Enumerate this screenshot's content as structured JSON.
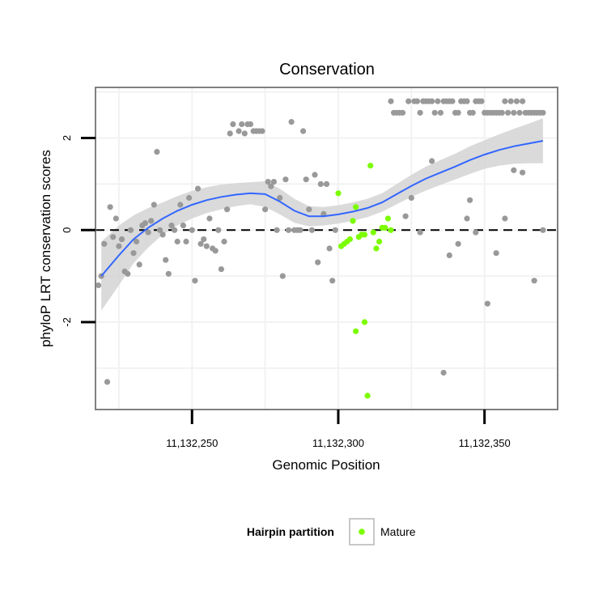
{
  "chart_data": {
    "type": "scatter",
    "title": "Conservation",
    "xlabel": "Genomic Position",
    "ylabel": "phyloP LRT conservation scores",
    "xlim": [
      11132217,
      11132375
    ],
    "ylim": [
      -3.9,
      3.1
    ],
    "x_ticks": [
      {
        "value": 11132250,
        "label": "11,132,250"
      },
      {
        "value": 11132300,
        "label": "11,132,300"
      },
      {
        "value": 11132350,
        "label": "11,132,350"
      }
    ],
    "y_ticks": [
      {
        "value": 2,
        "label": "2"
      },
      {
        "value": 0,
        "label": "0"
      },
      {
        "value": -2,
        "label": "-2"
      }
    ],
    "grid": true,
    "reference_line": {
      "y": 0,
      "style": "dashed"
    },
    "legend": {
      "title": "Hairpin partition",
      "position": "bottom",
      "entries": [
        {
          "label": "Mature",
          "color": "#7cfc00"
        }
      ]
    },
    "colors": {
      "other_points": "#999999",
      "mature_points": "#7cfc00",
      "smooth_line": "#3366ff",
      "confidence_band": "#d3d3d3"
    },
    "series": [
      {
        "legend": "",
        "color": "#999999",
        "points": [
          [
            11132218,
            -1.2
          ],
          [
            11132219,
            -1.0
          ],
          [
            11132220,
            -0.3
          ],
          [
            11132221,
            -3.3
          ],
          [
            11132222,
            0.5
          ],
          [
            11132223,
            -0.15
          ],
          [
            11132224,
            0.25
          ],
          [
            11132225,
            -0.35
          ],
          [
            11132226,
            -0.2
          ],
          [
            11132227,
            -0.9
          ],
          [
            11132228,
            -0.95
          ],
          [
            11132229,
            0.0
          ],
          [
            11132230,
            -0.5
          ],
          [
            11132231,
            -0.25
          ],
          [
            11132232,
            -0.75
          ],
          [
            11132233,
            0.1
          ],
          [
            11132234,
            0.15
          ],
          [
            11132235,
            -0.05
          ],
          [
            11132236,
            0.2
          ],
          [
            11132237,
            0.55
          ],
          [
            11132238,
            1.7
          ],
          [
            11132239,
            0.0
          ],
          [
            11132240,
            -0.1
          ],
          [
            11132241,
            -0.65
          ],
          [
            11132242,
            -0.95
          ],
          [
            11132243,
            0.1
          ],
          [
            11132244,
            0.0
          ],
          [
            11132245,
            -0.25
          ],
          [
            11132246,
            0.55
          ],
          [
            11132247,
            0.1
          ],
          [
            11132248,
            -0.25
          ],
          [
            11132249,
            0.7
          ],
          [
            11132250,
            0.0
          ],
          [
            11132251,
            -1.1
          ],
          [
            11132252,
            0.9
          ],
          [
            11132253,
            -0.3
          ],
          [
            11132254,
            -0.2
          ],
          [
            11132255,
            -0.35
          ],
          [
            11132256,
            0.25
          ],
          [
            11132257,
            -0.4
          ],
          [
            11132258,
            -0.45
          ],
          [
            11132259,
            0.0
          ],
          [
            11132260,
            -0.85
          ],
          [
            11132261,
            -0.25
          ],
          [
            11132262,
            0.45
          ],
          [
            11132263,
            2.1
          ],
          [
            11132264,
            2.3
          ],
          [
            11132266,
            2.15
          ],
          [
            11132267,
            2.3
          ],
          [
            11132268,
            2.1
          ],
          [
            11132269,
            2.3
          ],
          [
            11132270,
            2.3
          ],
          [
            11132271,
            2.15
          ],
          [
            11132272,
            2.15
          ],
          [
            11132273,
            2.15
          ],
          [
            11132274,
            2.15
          ],
          [
            11132275,
            0.45
          ],
          [
            11132276,
            1.05
          ],
          [
            11132277,
            0.95
          ],
          [
            11132278,
            1.05
          ],
          [
            11132279,
            0.0
          ],
          [
            11132280,
            0.7
          ],
          [
            11132281,
            -1.0
          ],
          [
            11132282,
            1.1
          ],
          [
            11132283,
            0.0
          ],
          [
            11132284,
            2.35
          ],
          [
            11132285,
            0.0
          ],
          [
            11132286,
            0.0
          ],
          [
            11132287,
            0.0
          ],
          [
            11132288,
            2.15
          ],
          [
            11132289,
            1.1
          ],
          [
            11132290,
            0.45
          ],
          [
            11132291,
            0.0
          ],
          [
            11132292,
            1.2
          ],
          [
            11132293,
            -0.7
          ],
          [
            11132294,
            1.0
          ],
          [
            11132295,
            0.35
          ],
          [
            11132296,
            1.0
          ],
          [
            11132297,
            -0.4
          ],
          [
            11132298,
            -1.1
          ],
          [
            11132299,
            0.0
          ],
          [
            11132323,
            0.3
          ],
          [
            11132325,
            0.7
          ],
          [
            11132328,
            -0.05
          ],
          [
            11132332,
            1.5
          ],
          [
            11132336,
            -3.1
          ],
          [
            11132338,
            -0.55
          ],
          [
            11132341,
            -0.3
          ],
          [
            11132344,
            0.25
          ],
          [
            11132345,
            0.65
          ],
          [
            11132347,
            -0.05
          ],
          [
            11132351,
            -1.6
          ],
          [
            11132354,
            -0.5
          ],
          [
            11132357,
            0.25
          ],
          [
            11132360,
            1.3
          ],
          [
            11132363,
            1.25
          ],
          [
            11132367,
            -1.1
          ],
          [
            11132370,
            0.0
          ],
          [
            11132318,
            2.8
          ],
          [
            11132319,
            2.55
          ],
          [
            11132320,
            2.55
          ],
          [
            11132321,
            2.55
          ],
          [
            11132322,
            2.55
          ],
          [
            11132324,
            2.8
          ],
          [
            11132326,
            2.8
          ],
          [
            11132327,
            2.8
          ],
          [
            11132328,
            2.55
          ],
          [
            11132329,
            2.8
          ],
          [
            11132330,
            2.8
          ],
          [
            11132331,
            2.8
          ],
          [
            11132332,
            2.8
          ],
          [
            11132333,
            2.55
          ],
          [
            11132334,
            2.8
          ],
          [
            11132335,
            2.55
          ],
          [
            11132336,
            2.8
          ],
          [
            11132337,
            2.8
          ],
          [
            11132338,
            2.8
          ],
          [
            11132339,
            2.8
          ],
          [
            11132340,
            2.55
          ],
          [
            11132341,
            2.55
          ],
          [
            11132342,
            2.8
          ],
          [
            11132343,
            2.8
          ],
          [
            11132344,
            2.8
          ],
          [
            11132345,
            2.55
          ],
          [
            11132346,
            2.55
          ],
          [
            11132347,
            2.8
          ],
          [
            11132348,
            2.8
          ],
          [
            11132349,
            2.8
          ],
          [
            11132350,
            2.55
          ],
          [
            11132351,
            2.55
          ],
          [
            11132352,
            2.55
          ],
          [
            11132353,
            2.55
          ],
          [
            11132354,
            2.55
          ],
          [
            11132355,
            2.55
          ],
          [
            11132356,
            2.55
          ],
          [
            11132357,
            2.8
          ],
          [
            11132358,
            2.55
          ],
          [
            11132359,
            2.8
          ],
          [
            11132360,
            2.55
          ],
          [
            11132361,
            2.8
          ],
          [
            11132362,
            2.55
          ],
          [
            11132363,
            2.8
          ],
          [
            11132364,
            2.55
          ],
          [
            11132365,
            2.55
          ],
          [
            11132366,
            2.55
          ],
          [
            11132367,
            2.55
          ],
          [
            11132368,
            2.55
          ],
          [
            11132369,
            2.55
          ],
          [
            11132370,
            2.55
          ]
        ]
      },
      {
        "legend": "Mature",
        "color": "#7cfc00",
        "points": [
          [
            11132300,
            0.8
          ],
          [
            11132301,
            -0.35
          ],
          [
            11132302,
            -0.3
          ],
          [
            11132303,
            -0.25
          ],
          [
            11132304,
            -0.2
          ],
          [
            11132305,
            0.2
          ],
          [
            11132306,
            0.5
          ],
          [
            11132306,
            -2.2
          ],
          [
            11132307,
            -0.15
          ],
          [
            11132308,
            -0.1
          ],
          [
            11132309,
            -2.0
          ],
          [
            11132309,
            -0.1
          ],
          [
            11132310,
            -3.6
          ],
          [
            11132311,
            1.4
          ],
          [
            11132312,
            -0.05
          ],
          [
            11132313,
            -0.4
          ],
          [
            11132314,
            -0.25
          ],
          [
            11132315,
            0.05
          ],
          [
            11132316,
            0.05
          ],
          [
            11132317,
            0.25
          ],
          [
            11132318,
            0.0
          ]
        ]
      }
    ],
    "smooth": {
      "x": [
        11132219,
        11132225,
        11132230,
        11132235,
        11132240,
        11132245,
        11132250,
        11132255,
        11132260,
        11132265,
        11132270,
        11132275,
        11132280,
        11132285,
        11132290,
        11132295,
        11132300,
        11132305,
        11132310,
        11132315,
        11132320,
        11132325,
        11132330,
        11132335,
        11132340,
        11132345,
        11132350,
        11132355,
        11132360,
        11132365,
        11132370
      ],
      "y": [
        -1.0,
        -0.55,
        -0.2,
        0.05,
        0.25,
        0.42,
        0.55,
        0.65,
        0.72,
        0.77,
        0.8,
        0.78,
        0.62,
        0.42,
        0.3,
        0.3,
        0.34,
        0.4,
        0.48,
        0.6,
        0.78,
        0.96,
        1.12,
        1.25,
        1.38,
        1.52,
        1.64,
        1.74,
        1.82,
        1.88,
        1.94
      ],
      "lower": [
        -1.75,
        -1.2,
        -0.72,
        -0.38,
        -0.1,
        0.1,
        0.25,
        0.37,
        0.45,
        0.52,
        0.56,
        0.5,
        0.34,
        0.16,
        0.08,
        0.1,
        0.14,
        0.2,
        0.28,
        0.4,
        0.56,
        0.72,
        0.86,
        0.98,
        1.1,
        1.22,
        1.33,
        1.4,
        1.44,
        1.45,
        1.45
      ],
      "upper": [
        -0.25,
        0.1,
        0.32,
        0.48,
        0.6,
        0.74,
        0.85,
        0.93,
        0.99,
        1.02,
        1.04,
        1.06,
        0.9,
        0.68,
        0.52,
        0.5,
        0.54,
        0.6,
        0.68,
        0.8,
        1.0,
        1.2,
        1.38,
        1.52,
        1.66,
        1.82,
        1.95,
        2.08,
        2.2,
        2.31,
        2.43
      ]
    }
  }
}
